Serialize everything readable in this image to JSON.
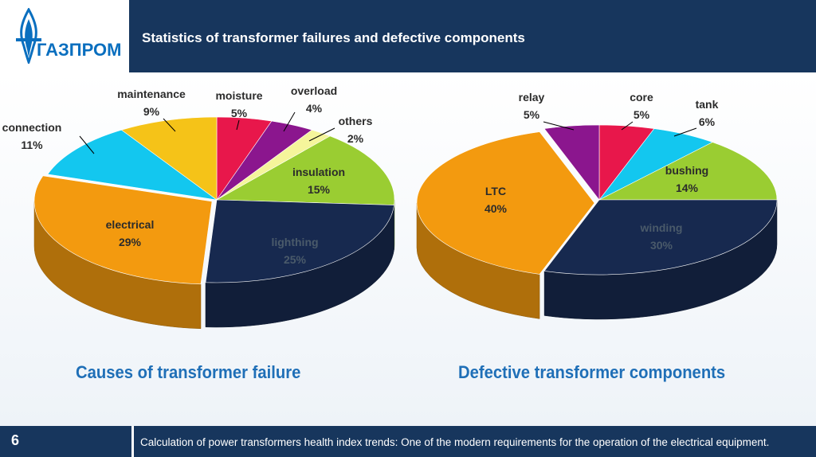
{
  "header": {
    "logo_text": "ГАЗПРОМ",
    "title": "Statistics of transformer failures and defective components"
  },
  "captions": {
    "left": "Causes of transformer failure",
    "right": "Defective transformer components"
  },
  "footer": {
    "page_number": "6",
    "text": "Calculation of power transformers health index trends: One of the modern requirements for the operation of the electrical equipment."
  },
  "colors": {
    "header_bg": "#17365d",
    "caption": "#1f6fb7",
    "logo": "#0a6fbf"
  },
  "chart_data": [
    {
      "type": "pie",
      "title": "Causes of transformer failure",
      "slices": [
        {
          "label": "moisture",
          "pct_label": "5%",
          "value": 5,
          "color": "#e8174b"
        },
        {
          "label": "overload",
          "pct_label": "4%",
          "value": 4,
          "color": "#8b168e"
        },
        {
          "label": "others",
          "pct_label": "2%",
          "value": 2,
          "color": "#f5f59b"
        },
        {
          "label": "insulation",
          "pct_label": "15%",
          "value": 15,
          "color": "#9acd32"
        },
        {
          "label": "lighthing",
          "pct_label": "25%",
          "value": 25,
          "color": "#17294f"
        },
        {
          "label": "electrical",
          "pct_label": "29%",
          "value": 29,
          "color": "#f39a0f"
        },
        {
          "label": "connection",
          "pct_label": "11%",
          "value": 11,
          "color": "#13c7ef"
        },
        {
          "label": "maintenance",
          "pct_label": "9%",
          "value": 9,
          "color": "#f5c318"
        }
      ]
    },
    {
      "type": "pie",
      "title": "Defective transformer components",
      "slices": [
        {
          "label": "core",
          "pct_label": "5%",
          "value": 5,
          "color": "#e8174b"
        },
        {
          "label": "tank",
          "pct_label": "6%",
          "value": 6,
          "color": "#13c7ef"
        },
        {
          "label": "bushing",
          "pct_label": "14%",
          "value": 14,
          "color": "#9acd32"
        },
        {
          "label": "winding",
          "pct_label": "30%",
          "value": 30,
          "color": "#17294f"
        },
        {
          "label": "LTC",
          "pct_label": "40%",
          "value": 40,
          "color": "#f39a0f"
        },
        {
          "label": "relay",
          "pct_label": "5%",
          "value": 5,
          "color": "#8b168e"
        }
      ]
    }
  ]
}
